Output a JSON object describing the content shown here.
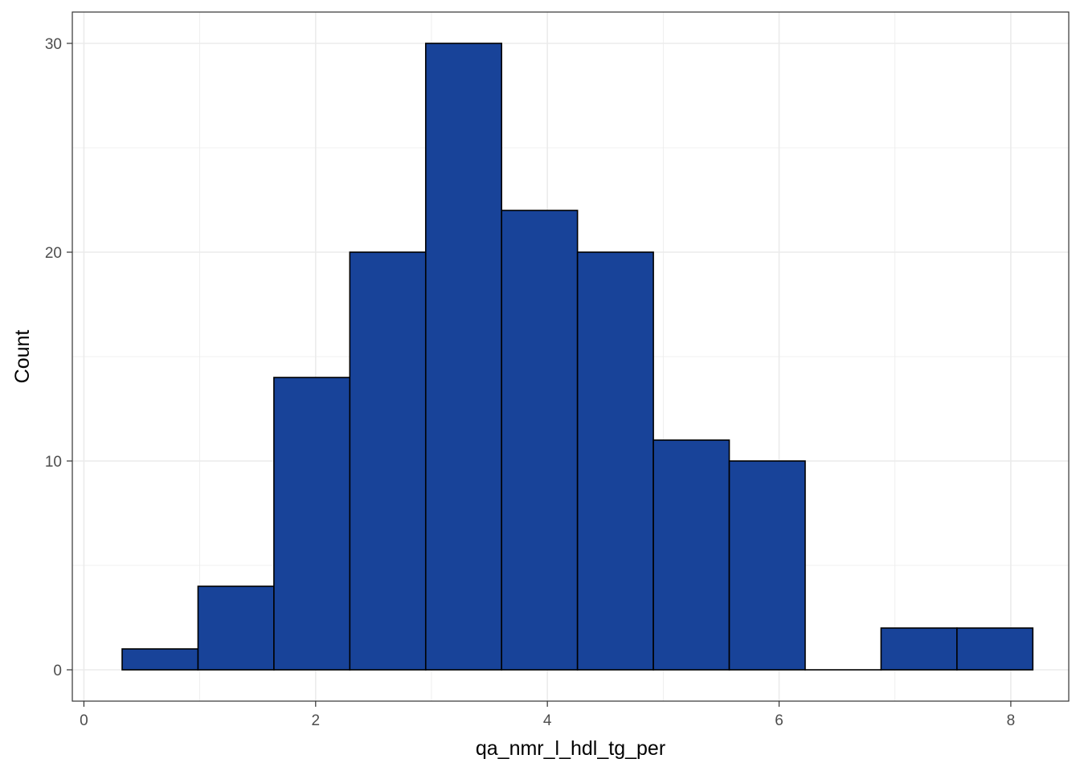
{
  "chart_data": {
    "type": "bar",
    "subtype": "histogram",
    "title": "",
    "xlabel": "qa_nmr_l_hdl_tg_per",
    "ylabel": "Count",
    "xlim": [
      -0.1,
      8.5
    ],
    "ylim": [
      -1.5,
      31.5
    ],
    "x_ticks": [
      0,
      2,
      4,
      6,
      8
    ],
    "y_ticks": [
      0,
      10,
      20,
      30
    ],
    "grid": true,
    "legend": "none",
    "bin_width": 0.655,
    "bins": [
      {
        "x_start": 0.33,
        "x_end": 0.985,
        "count": 1
      },
      {
        "x_start": 0.985,
        "x_end": 1.64,
        "count": 4
      },
      {
        "x_start": 1.64,
        "x_end": 2.295,
        "count": 14
      },
      {
        "x_start": 2.295,
        "x_end": 2.95,
        "count": 20
      },
      {
        "x_start": 2.95,
        "x_end": 3.605,
        "count": 30
      },
      {
        "x_start": 3.605,
        "x_end": 4.26,
        "count": 22
      },
      {
        "x_start": 4.26,
        "x_end": 4.915,
        "count": 20
      },
      {
        "x_start": 4.915,
        "x_end": 5.57,
        "count": 11
      },
      {
        "x_start": 5.57,
        "x_end": 6.225,
        "count": 10
      },
      {
        "x_start": 6.225,
        "x_end": 6.88,
        "count": 0
      },
      {
        "x_start": 6.88,
        "x_end": 7.535,
        "count": 2
      },
      {
        "x_start": 7.535,
        "x_end": 8.19,
        "count": 2
      }
    ],
    "colors": {
      "bar_fill": "#184399",
      "bar_stroke": "#000000",
      "grid": "#ebebeb",
      "panel_border": "#333333"
    }
  }
}
